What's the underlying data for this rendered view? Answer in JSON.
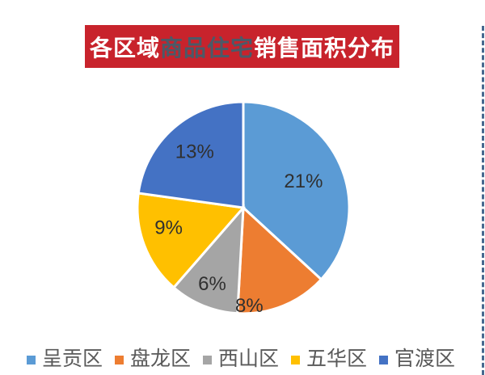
{
  "title": {
    "part1": "各区域",
    "part2": "商品住宅",
    "part3": "销售面积分布",
    "banner_bg": "#C8232C",
    "part2_color": "#4B5A68",
    "text_color": "#FFFFFF"
  },
  "chart_data": {
    "type": "pie",
    "title": "各区域商品住宅销售面积分布",
    "categories": [
      "呈贡区",
      "盘龙区",
      "西山区",
      "五华区",
      "官渡区"
    ],
    "values": [
      21,
      8,
      6,
      9,
      13
    ],
    "labels": [
      "21%",
      "8%",
      "6%",
      "9%",
      "13%"
    ],
    "colors": [
      "#5B9BD5",
      "#ED7D31",
      "#A5A5A5",
      "#FFC000",
      "#4472C4"
    ],
    "displayed_total": 57,
    "start_angle_deg": 0,
    "direction": "clockwise",
    "separator_color": "#FFFFFF",
    "separator_width": 3,
    "label_color": "#303030",
    "legend_position": "bottom",
    "label_layout": [
      {
        "r": 0.62,
        "angle_deg": null
      },
      {
        "r": 0.93,
        "angle_deg": 176.5
      },
      {
        "r": 0.78,
        "angle_deg": null
      },
      {
        "r": 0.73,
        "angle_deg": 255
      },
      {
        "r": 0.7,
        "angle_deg": null
      }
    ]
  },
  "legend": {
    "text_color": "#595959"
  },
  "decor": {
    "dashed_line_color": "#46688F"
  }
}
